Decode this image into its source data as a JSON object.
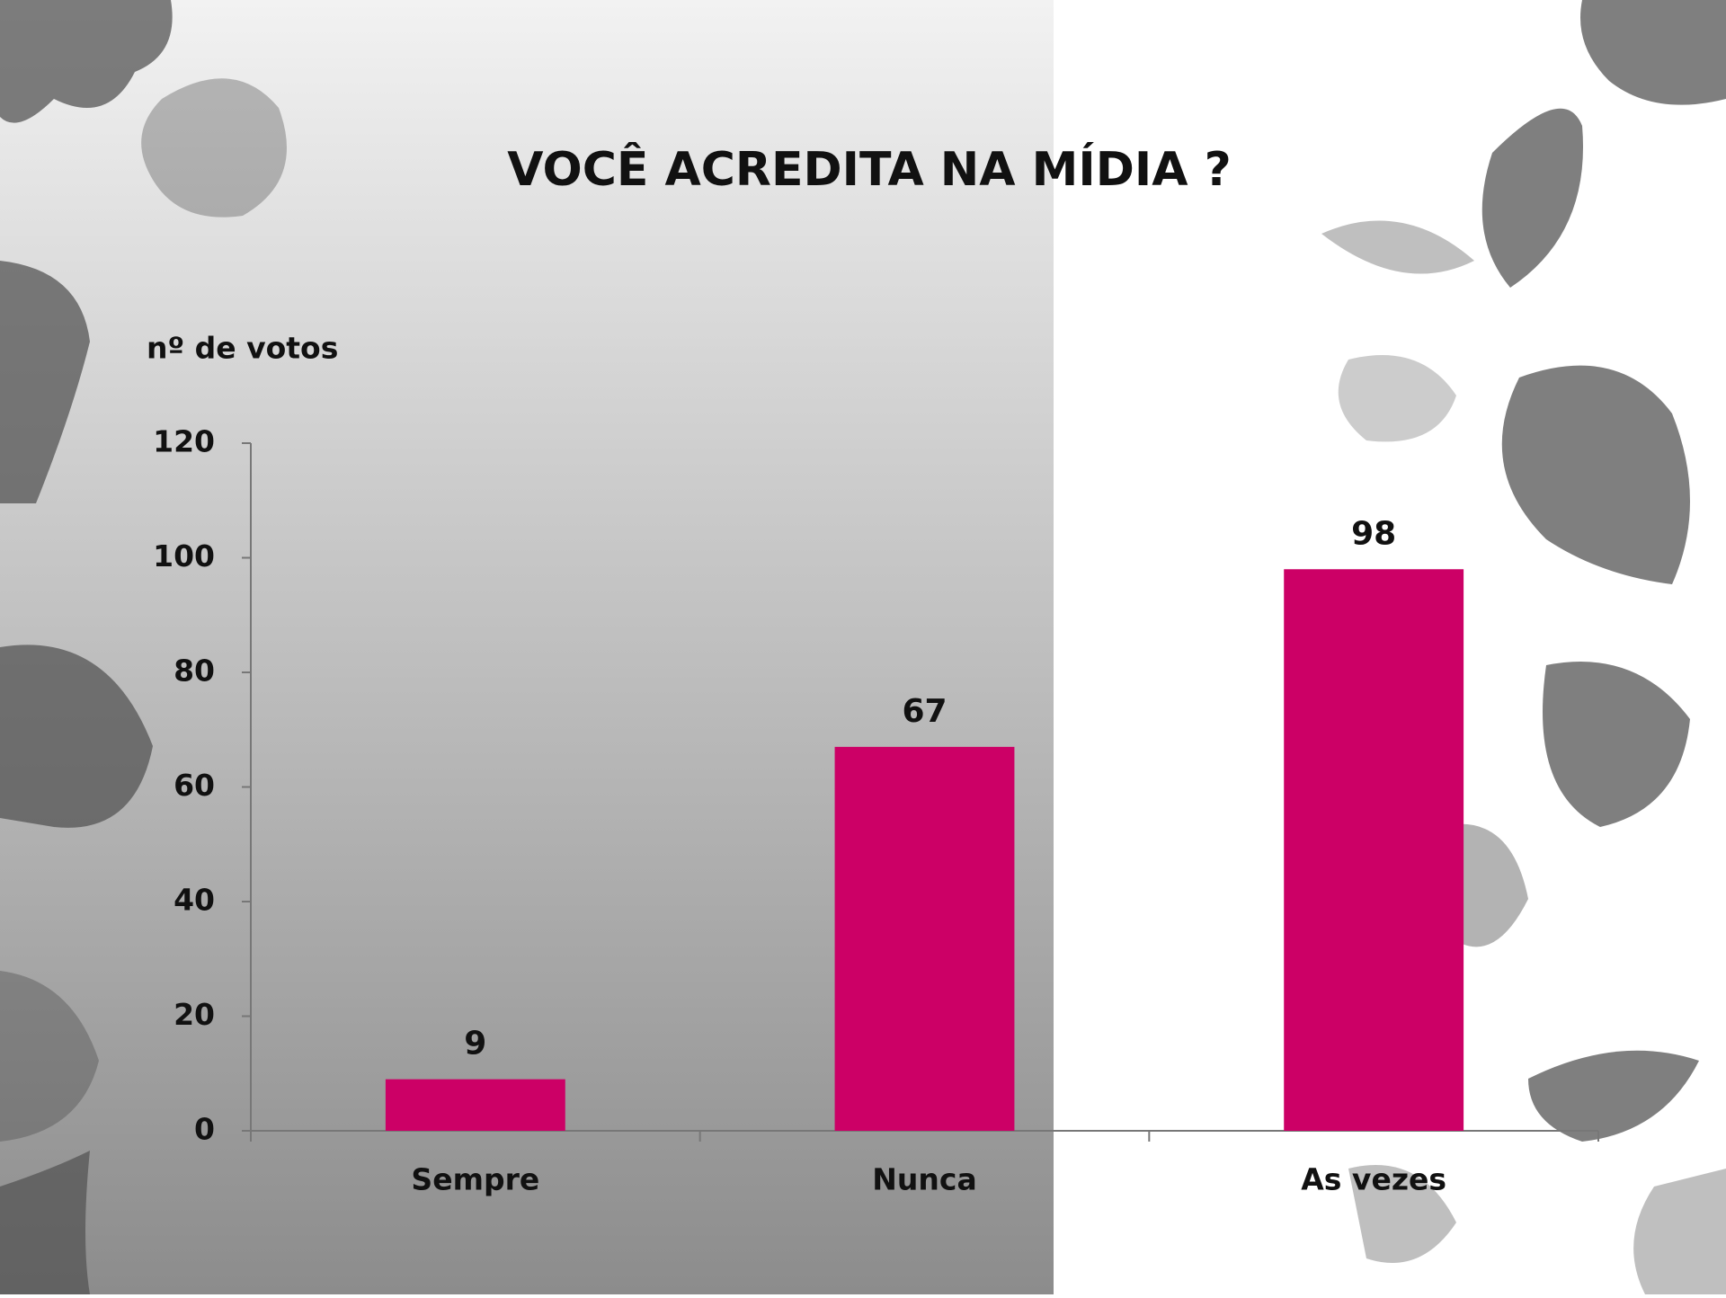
{
  "chart_data": {
    "type": "bar",
    "title": "VOCÊ ACREDITA NA MÍDIA ?",
    "y_axis_label": "nº de votos",
    "categories": [
      "Sempre",
      "Nunca",
      "As vezes"
    ],
    "values": [
      9,
      67,
      98
    ],
    "color": "#cc0066",
    "ylim": [
      0,
      120
    ],
    "yticks": [
      0,
      20,
      40,
      60,
      80,
      100,
      120
    ],
    "grid": false
  }
}
